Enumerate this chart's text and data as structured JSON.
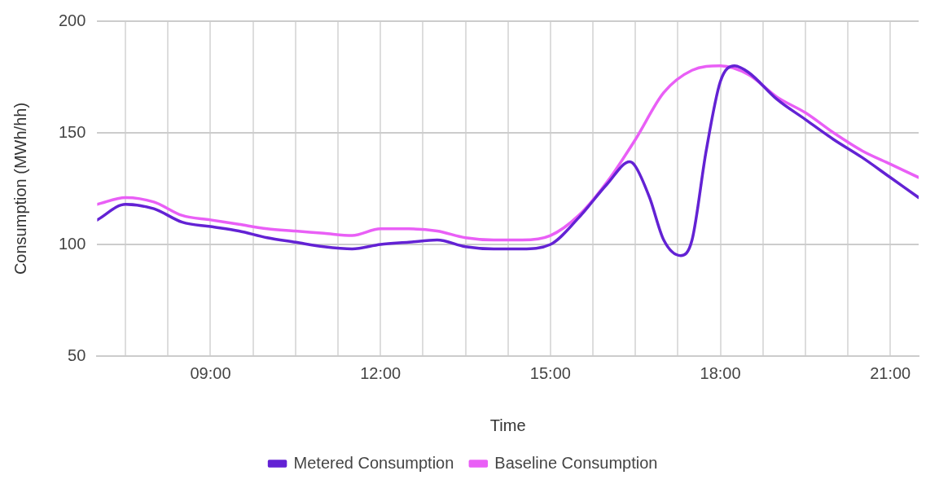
{
  "chart_data": {
    "type": "line",
    "xlabel": "Time",
    "ylabel": "Consumption (MWh/hh)",
    "xlim": [
      7,
      21.5
    ],
    "xticks": [
      {
        "value": 7.5,
        "label": null
      },
      {
        "value": 8.25,
        "label": null
      },
      {
        "value": 9,
        "label": "09:00"
      },
      {
        "value": 9.75,
        "label": null
      },
      {
        "value": 10.5,
        "label": null
      },
      {
        "value": 11.25,
        "label": null
      },
      {
        "value": 12,
        "label": "12:00"
      },
      {
        "value": 12.75,
        "label": null
      },
      {
        "value": 13.5,
        "label": null
      },
      {
        "value": 14.25,
        "label": null
      },
      {
        "value": 15,
        "label": "15:00"
      },
      {
        "value": 15.75,
        "label": null
      },
      {
        "value": 16.5,
        "label": null
      },
      {
        "value": 17.25,
        "label": null
      },
      {
        "value": 18,
        "label": "18:00"
      },
      {
        "value": 18.75,
        "label": null
      },
      {
        "value": 19.5,
        "label": null
      },
      {
        "value": 20.25,
        "label": null
      },
      {
        "value": 21,
        "label": "21:00"
      }
    ],
    "ylim": [
      50,
      200
    ],
    "yticks": [
      50,
      100,
      150,
      200
    ],
    "grid": true,
    "legend": "bottom",
    "marker": "none",
    "line_style": "solid",
    "series": [
      {
        "name": "Metered Consumption",
        "color": "#6322d4",
        "x": [
          7,
          7.5,
          8,
          8.5,
          9,
          9.5,
          10,
          10.5,
          11,
          11.5,
          12,
          12.5,
          13,
          13.5,
          14,
          14.5,
          15,
          15.5,
          16,
          16.4,
          16.5,
          16.75,
          17,
          17.3,
          17.5,
          17.75,
          18,
          18.25,
          18.5,
          19,
          19.5,
          20,
          20.5,
          21,
          21.5
        ],
        "values": [
          111,
          118,
          116,
          110,
          108,
          106,
          103,
          101,
          99,
          98,
          100,
          101,
          102,
          99,
          98,
          98,
          100,
          112,
          127,
          137,
          135,
          121,
          102,
          95,
          102,
          142,
          173,
          180,
          177,
          165,
          156,
          147,
          139,
          130,
          121
        ]
      },
      {
        "name": "Baseline Consumption",
        "color": "#e95ff6",
        "x": [
          7,
          7.5,
          8,
          8.5,
          9,
          9.5,
          10,
          10.5,
          11,
          11.5,
          12,
          12.5,
          13,
          13.5,
          14,
          14.5,
          15,
          15.5,
          16,
          16.5,
          17,
          17.5,
          18,
          18.5,
          19,
          19.5,
          20,
          20.5,
          21,
          21.5
        ],
        "values": [
          118,
          121,
          119,
          113,
          111,
          109,
          107,
          106,
          105,
          104,
          107,
          107,
          106,
          103,
          102,
          102,
          104,
          113,
          128,
          147,
          168,
          178,
          180,
          176,
          166,
          159,
          150,
          142,
          136,
          130
        ]
      }
    ]
  }
}
